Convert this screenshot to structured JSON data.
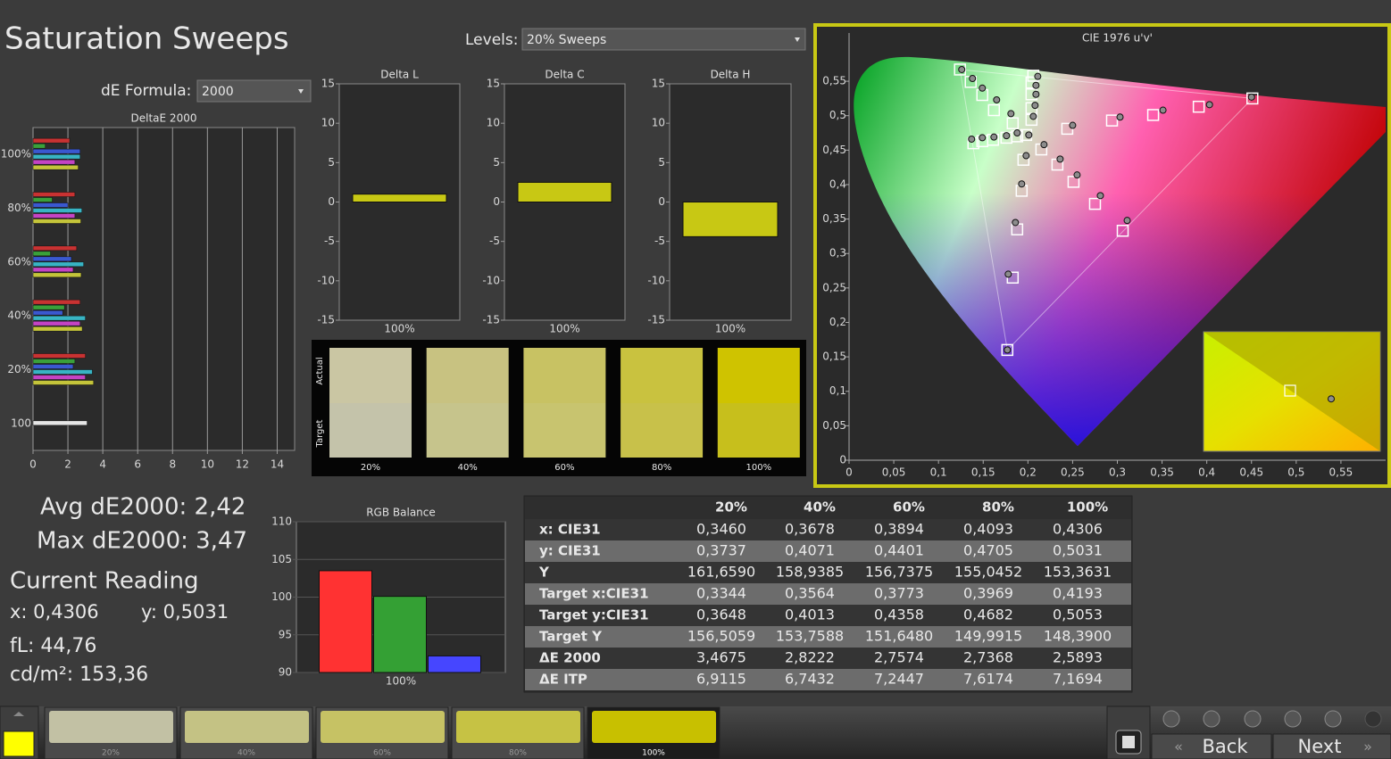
{
  "title": "Saturation Sweeps",
  "levels": {
    "label": "Levels:",
    "value": "20% Sweeps"
  },
  "de_formula": {
    "label": "dE Formula:",
    "value": "2000"
  },
  "stats": {
    "avg": "Avg dE2000: 2,42",
    "max": "Max dE2000: 3,47",
    "current_reading": "Current Reading",
    "x": "x: 0,4306",
    "y": "y: 0,5031",
    "fl": "fL: 44,76",
    "cdm2": "cd/m²: 153,36"
  },
  "chart_data": [
    {
      "type": "bar",
      "orientation": "horizontal",
      "title": "DeltaE 2000",
      "categories": [
        "100%",
        "80%",
        "60%",
        "40%",
        "20%",
        "100"
      ],
      "series": [
        {
          "color": "#c83232",
          "values": [
            2.1,
            2.4,
            2.5,
            2.7,
            3.0,
            null
          ]
        },
        {
          "color": "#3aa03a",
          "values": [
            0.7,
            1.1,
            1.0,
            1.8,
            2.4,
            null
          ]
        },
        {
          "color": "#3a58d0",
          "values": [
            2.7,
            2.0,
            2.2,
            1.7,
            2.3,
            null
          ]
        },
        {
          "color": "#38b4c4",
          "values": [
            2.7,
            2.8,
            2.9,
            3.0,
            3.4,
            null
          ]
        },
        {
          "color": "#c444c4",
          "values": [
            2.4,
            2.4,
            2.3,
            2.7,
            3.0,
            null
          ]
        },
        {
          "color": "#c4c43a",
          "values": [
            2.59,
            2.74,
            2.76,
            2.82,
            3.47,
            null
          ]
        },
        {
          "color": "#e6e6e6",
          "values": [
            null,
            null,
            null,
            null,
            null,
            3.1
          ]
        }
      ],
      "xlim": [
        0,
        15
      ],
      "xticks": [
        0,
        2,
        4,
        6,
        8,
        10,
        12,
        14
      ],
      "grid": true
    },
    {
      "type": "bar",
      "title": "Delta L",
      "categories": [
        "100%"
      ],
      "values": [
        1.0
      ],
      "color": "#c8c814",
      "ylim": [
        -15,
        15
      ],
      "yticks": [
        -15,
        -10,
        -5,
        0,
        5,
        10,
        15
      ],
      "grid": false
    },
    {
      "type": "bar",
      "title": "Delta C",
      "categories": [
        "100%"
      ],
      "values": [
        2.5
      ],
      "color": "#c8c814",
      "ylim": [
        -15,
        15
      ],
      "yticks": [
        -15,
        -10,
        -5,
        0,
        5,
        10,
        15
      ],
      "grid": false
    },
    {
      "type": "bar",
      "title": "Delta H",
      "categories": [
        "100%"
      ],
      "values": [
        -4.4
      ],
      "color": "#c8c814",
      "ylim": [
        -15,
        15
      ],
      "yticks": [
        -15,
        -10,
        -5,
        0,
        5,
        10,
        15
      ],
      "grid": false
    },
    {
      "type": "bar",
      "title": "RGB Balance",
      "categories": [
        "100%"
      ],
      "series": [
        {
          "color": "#ff3232",
          "values": [
            103.5
          ]
        },
        {
          "color": "#34a034",
          "values": [
            100.1
          ]
        },
        {
          "color": "#4646ff",
          "values": [
            92.2
          ]
        }
      ],
      "ylim": [
        90,
        110
      ],
      "yticks": [
        90,
        95,
        100,
        105,
        110
      ],
      "grid": true
    },
    {
      "type": "scatter",
      "title": "CIE 1976 u'v'",
      "series": [
        {
          "marker": "square",
          "color": "#ffffff",
          "x": [
            0.244,
            0.294,
            0.34,
            0.391,
            0.451,
            0.204,
            0.204,
            0.204,
            0.204,
            0.206,
            0.183,
            0.162,
            0.149,
            0.136,
            0.124,
            0.188,
            0.176,
            0.161,
            0.149,
            0.139,
            0.195,
            0.193,
            0.188,
            0.183,
            0.177,
            0.215,
            0.233,
            0.251,
            0.275,
            0.306,
            0.198
          ],
          "y": [
            0.481,
            0.493,
            0.501,
            0.513,
            0.525,
            0.494,
            0.511,
            0.531,
            0.548,
            0.558,
            0.489,
            0.508,
            0.53,
            0.549,
            0.567,
            0.47,
            0.468,
            0.465,
            0.463,
            0.46,
            0.436,
            0.391,
            0.335,
            0.265,
            0.16,
            0.451,
            0.429,
            0.404,
            0.372,
            0.333,
            0.472
          ]
        },
        {
          "marker": "circle",
          "color": "#8c8c8c",
          "x": [
            0.25,
            0.303,
            0.351,
            0.403,
            0.45,
            0.206,
            0.208,
            0.209,
            0.209,
            0.211,
            0.181,
            0.165,
            0.149,
            0.138,
            0.126,
            0.188,
            0.176,
            0.162,
            0.149,
            0.137,
            0.198,
            0.193,
            0.186,
            0.178,
            0.177,
            0.218,
            0.236,
            0.255,
            0.281,
            0.311,
            0.201
          ],
          "y": [
            0.486,
            0.498,
            0.508,
            0.516,
            0.527,
            0.499,
            0.515,
            0.531,
            0.544,
            0.557,
            0.503,
            0.523,
            0.54,
            0.554,
            0.567,
            0.475,
            0.471,
            0.469,
            0.468,
            0.466,
            0.442,
            0.401,
            0.345,
            0.27,
            0.16,
            0.458,
            0.437,
            0.414,
            0.384,
            0.348,
            0.472
          ]
        }
      ],
      "xlim": [
        0,
        0.6
      ],
      "ylim": [
        0,
        0.62
      ],
      "xticks": [
        0,
        {
          "value": 0.05,
          "label": "0,05"
        },
        {
          "value": 0.1,
          "label": "0,1"
        },
        {
          "value": 0.15,
          "label": "0,15"
        },
        {
          "value": 0.2,
          "label": "0,2"
        },
        {
          "value": 0.25,
          "label": "0,25"
        },
        {
          "value": 0.3,
          "label": "0,3"
        },
        {
          "value": 0.35,
          "label": "0,35"
        },
        {
          "value": 0.4,
          "label": "0,4"
        },
        {
          "value": 0.45,
          "label": "0,45"
        },
        {
          "value": 0.5,
          "label": "0,5"
        },
        {
          "value": 0.55,
          "label": "0,55"
        }
      ],
      "yticks": [
        0,
        {
          "value": 0.05,
          "label": "0,05"
        },
        {
          "value": 0.1,
          "label": "0,1"
        },
        {
          "value": 0.15,
          "label": "0,15"
        },
        {
          "value": 0.2,
          "label": "0,2"
        },
        {
          "value": 0.25,
          "label": "0,25"
        },
        {
          "value": 0.3,
          "label": "0,3"
        },
        {
          "value": 0.35,
          "label": "0,35"
        },
        {
          "value": 0.4,
          "label": "0,4"
        },
        {
          "value": 0.45,
          "label": "0,45"
        },
        {
          "value": 0.5,
          "label": "0,5"
        },
        {
          "value": 0.55,
          "label": "0,55"
        }
      ],
      "grid": false
    }
  ],
  "swatches": {
    "actual_label": "Actual",
    "target_label": "Target",
    "items": [
      {
        "label": "20%",
        "actual": "#cac6a3",
        "target": "#c4c3aa"
      },
      {
        "label": "40%",
        "actual": "#c8c281",
        "target": "#c6c48c"
      },
      {
        "label": "60%",
        "actual": "#c8c263",
        "target": "#c8c46f"
      },
      {
        "label": "80%",
        "actual": "#c9c23f",
        "target": "#c8c14a"
      },
      {
        "label": "100%",
        "actual": "#cfc300",
        "target": "#c7bf1c"
      }
    ]
  },
  "table": {
    "header": [
      "20%",
      "40%",
      "60%",
      "80%",
      "100%"
    ],
    "rows": [
      {
        "label": "x: CIE31",
        "values": [
          "0,3460",
          "0,3678",
          "0,3894",
          "0,4093",
          "0,4306"
        ]
      },
      {
        "label": "y: CIE31",
        "values": [
          "0,3737",
          "0,4071",
          "0,4401",
          "0,4705",
          "0,5031"
        ]
      },
      {
        "label": "Y",
        "values": [
          "161,6590",
          "158,9385",
          "156,7375",
          "155,0452",
          "153,3631"
        ]
      },
      {
        "label": "Target x:CIE31",
        "values": [
          "0,3344",
          "0,3564",
          "0,3773",
          "0,3969",
          "0,4193"
        ]
      },
      {
        "label": "Target y:CIE31",
        "values": [
          "0,3648",
          "0,4013",
          "0,4358",
          "0,4682",
          "0,5053"
        ]
      },
      {
        "label": "Target Y",
        "values": [
          "156,5059",
          "153,7588",
          "151,6480",
          "149,9915",
          "148,3900"
        ]
      },
      {
        "label": "ΔE 2000",
        "values": [
          "3,4675",
          "2,8222",
          "2,7574",
          "2,7368",
          "2,5893"
        ]
      },
      {
        "label": "ΔE ITP",
        "values": [
          "6,9115",
          "6,7432",
          "7,2447",
          "7,6174",
          "7,1694"
        ]
      }
    ]
  },
  "footer": {
    "current_color": "#ffff00",
    "items": [
      {
        "label": "20%",
        "color": "#c2c1a4"
      },
      {
        "label": "40%",
        "color": "#c4c284"
      },
      {
        "label": "60%",
        "color": "#c6c264"
      },
      {
        "label": "80%",
        "color": "#c6c244"
      },
      {
        "label": "100%",
        "color": "#c8c000"
      }
    ],
    "back": "Back",
    "next": "Next"
  }
}
